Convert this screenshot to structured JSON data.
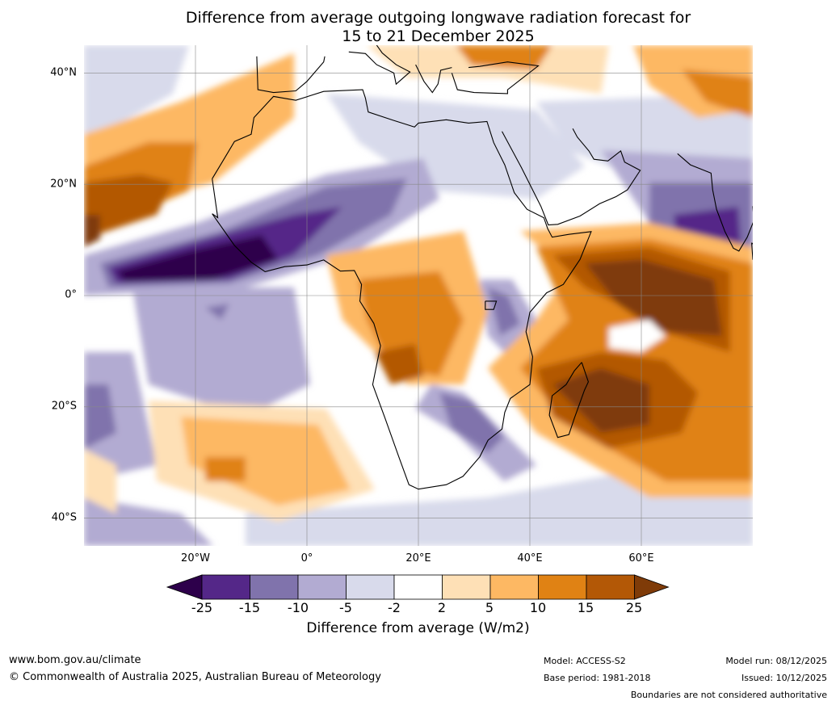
{
  "title": {
    "line1": "Difference from average outgoing longwave radiation forecast for",
    "line2": "15 to 21 December 2025"
  },
  "map": {
    "lat_labels": [
      "40°N",
      "20°N",
      "0°",
      "20°S",
      "40°S"
    ],
    "lat_values": [
      40,
      20,
      0,
      -20,
      -40
    ],
    "lon_labels": [
      "20°W",
      "0°",
      "20°E",
      "40°E",
      "60°E"
    ],
    "lon_values": [
      -20,
      0,
      20,
      40,
      60
    ],
    "lon_range": [
      -40,
      80
    ],
    "lat_range": [
      -45,
      45
    ]
  },
  "colorbar": {
    "ticks": [
      "-25",
      "-15",
      "-10",
      "-5",
      "-2",
      "2",
      "5",
      "10",
      "15",
      "25"
    ],
    "colors": [
      "#2d004b",
      "#542788",
      "#8073ac",
      "#b2abd2",
      "#d8daeb",
      "#ffffff",
      "#fee0b6",
      "#fdb863",
      "#e08214",
      "#b35806",
      "#7f3b08"
    ],
    "label": "Difference from average (W/m2)"
  },
  "footer": {
    "website": "www.bom.gov.au/climate",
    "copyright": "© Commonwealth of Australia 2025, Australian Bureau of Meteorology",
    "model": "Model: ACCESS-S2",
    "base_period": "Base period: 1981-2018",
    "model_run": "Model run: 08/12/2025",
    "issued": "Issued: 10/12/2025",
    "disclaimer": "Boundaries are not considered authoritative"
  }
}
